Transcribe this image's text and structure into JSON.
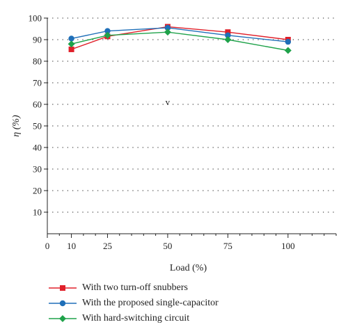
{
  "chart_data": {
    "type": "line",
    "xlabel": "Load (%)",
    "ylabel": "η (%)",
    "annotation": "v",
    "xlim": [
      0,
      120
    ],
    "ylim": [
      0,
      100
    ],
    "xticks": [
      0,
      10,
      25,
      50,
      75,
      100
    ],
    "yticks": [
      10,
      20,
      30,
      40,
      50,
      60,
      70,
      80,
      90,
      100
    ],
    "grid": "dotted horizontal",
    "legend_position": "bottom",
    "series": [
      {
        "name": "With two turn-off snubbers",
        "color": "#e0202a",
        "marker": "square",
        "x": [
          10,
          25,
          50,
          75,
          100
        ],
        "y": [
          85.5,
          91.5,
          96,
          93.5,
          90
        ]
      },
      {
        "name": "With the proposed single-capacitor",
        "color": "#1f6fb8",
        "marker": "circle",
        "x": [
          10,
          25,
          50,
          75,
          100
        ],
        "y": [
          90.5,
          94,
          95.5,
          92,
          89
        ]
      },
      {
        "name": "With hard-switching circuit",
        "color": "#1fa24a",
        "marker": "diamond",
        "x": [
          10,
          25,
          50,
          75,
          100
        ],
        "y": [
          88,
          92,
          93.5,
          90,
          85
        ]
      }
    ]
  }
}
